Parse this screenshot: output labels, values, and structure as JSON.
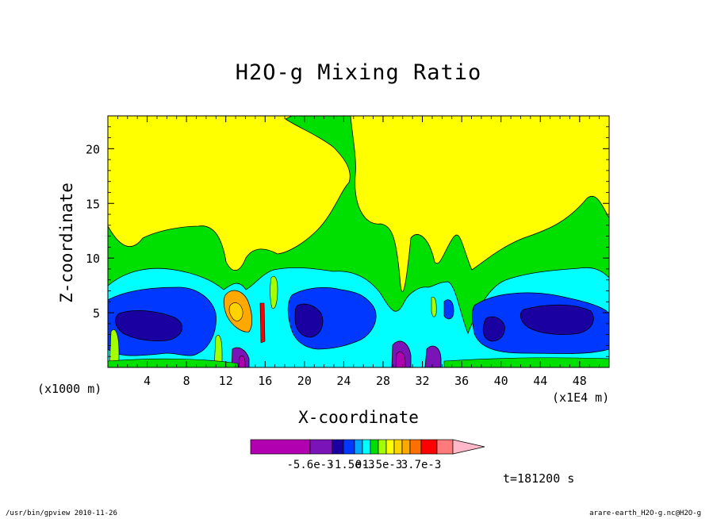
{
  "chart_data": {
    "type": "heatmap",
    "title": "H2O-g Mixing Ratio",
    "xlabel": "X-coordinate",
    "ylabel": "Z-coordinate",
    "x_unit_label": "(x1E4 m)",
    "y_unit_label": "(x1000 m)",
    "xlim": [
      0,
      51
    ],
    "ylim": [
      0,
      23
    ],
    "x_ticks": [
      4,
      8,
      12,
      16,
      20,
      24,
      28,
      32,
      36,
      40,
      44,
      48
    ],
    "y_ticks": [
      5,
      10,
      15,
      20
    ],
    "time_label": "t=181200 s",
    "colorbar": {
      "levels": [
        -0.0056,
        -0.0015,
        0,
        0.0015,
        0.0037
      ],
      "tick_labels": [
        "-5.6e-3",
        "-1.5e-3",
        "0",
        "1.5e-3",
        "3.7e-3"
      ],
      "colors": [
        "#b000b0",
        "#7a14b8",
        "#1a00a0",
        "#0038ff",
        "#00a6ff",
        "#00ffff",
        "#00e000",
        "#a4ff00",
        "#ffff00",
        "#ffd200",
        "#ffa800",
        "#ff7000",
        "#ff0000",
        "#ff7a7a",
        "#ffb8c8"
      ]
    },
    "regions": [
      {
        "level": "yellow",
        "description": "upper troposphere, positive anomaly"
      },
      {
        "level": "green",
        "description": "middle band z 6-13"
      },
      {
        "level": "cyan",
        "description": "z 5-8 band"
      },
      {
        "level": "blue",
        "description": "lower negative anomaly z 1-6"
      }
    ]
  },
  "footer": {
    "left": "/usr/bin/gpview  2010-11-26",
    "right": "arare-earth_H2O-g.nc@H2O-g"
  }
}
